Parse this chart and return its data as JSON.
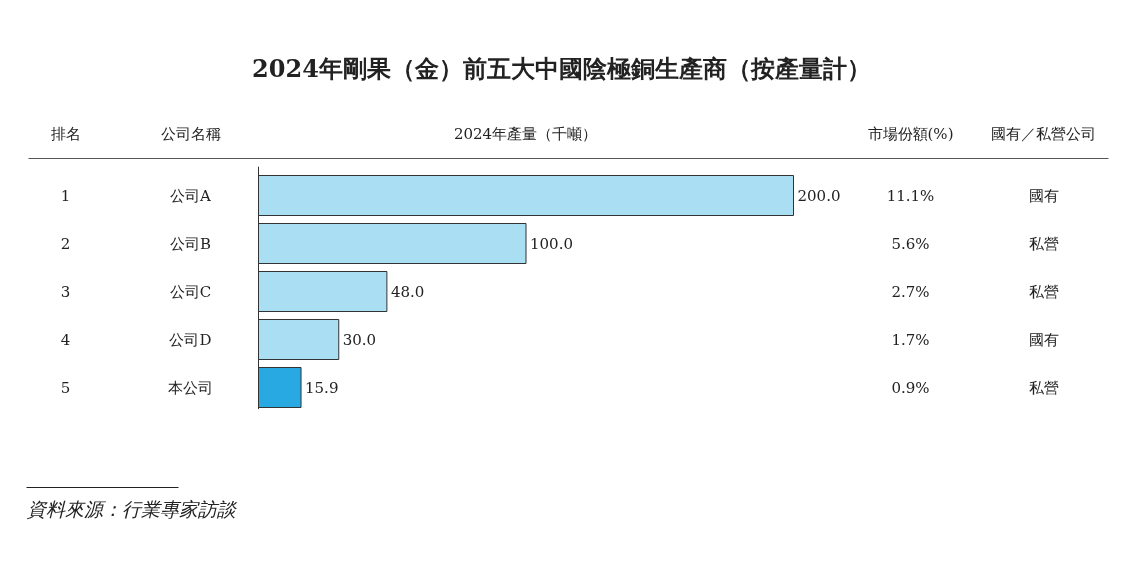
{
  "chart_data": {
    "type": "bar",
    "orientation": "horizontal",
    "title": "2024年剛果（金）前五大中國陰極銅生產商（按產量計）",
    "ylabel": "公司名稱",
    "xlabel": "2024年產量（千噸）",
    "categories": [
      "公司A",
      "公司B",
      "公司C",
      "公司D",
      "本公司"
    ],
    "values": [
      200.0,
      100.0,
      48.0,
      30.0,
      15.9
    ],
    "value_labels": [
      "200.0",
      "100.0",
      "48.0",
      "30.0",
      "15.9"
    ],
    "colors": [
      "#a9def3",
      "#a9def3",
      "#a9def3",
      "#a9def3",
      "#29a9e1"
    ],
    "annotations": [
      "排名",
      "市場份額(%)",
      "國有／私營公司",
      "1",
      "11.1%",
      "國有",
      "2",
      "5.6%",
      "私營",
      "3",
      "2.7%",
      "私營",
      "4",
      "1.7%",
      "國有",
      "5",
      "0.9%",
      "私營",
      "資料來源：行業專家訪談"
    ],
    "grid": false
  }
}
